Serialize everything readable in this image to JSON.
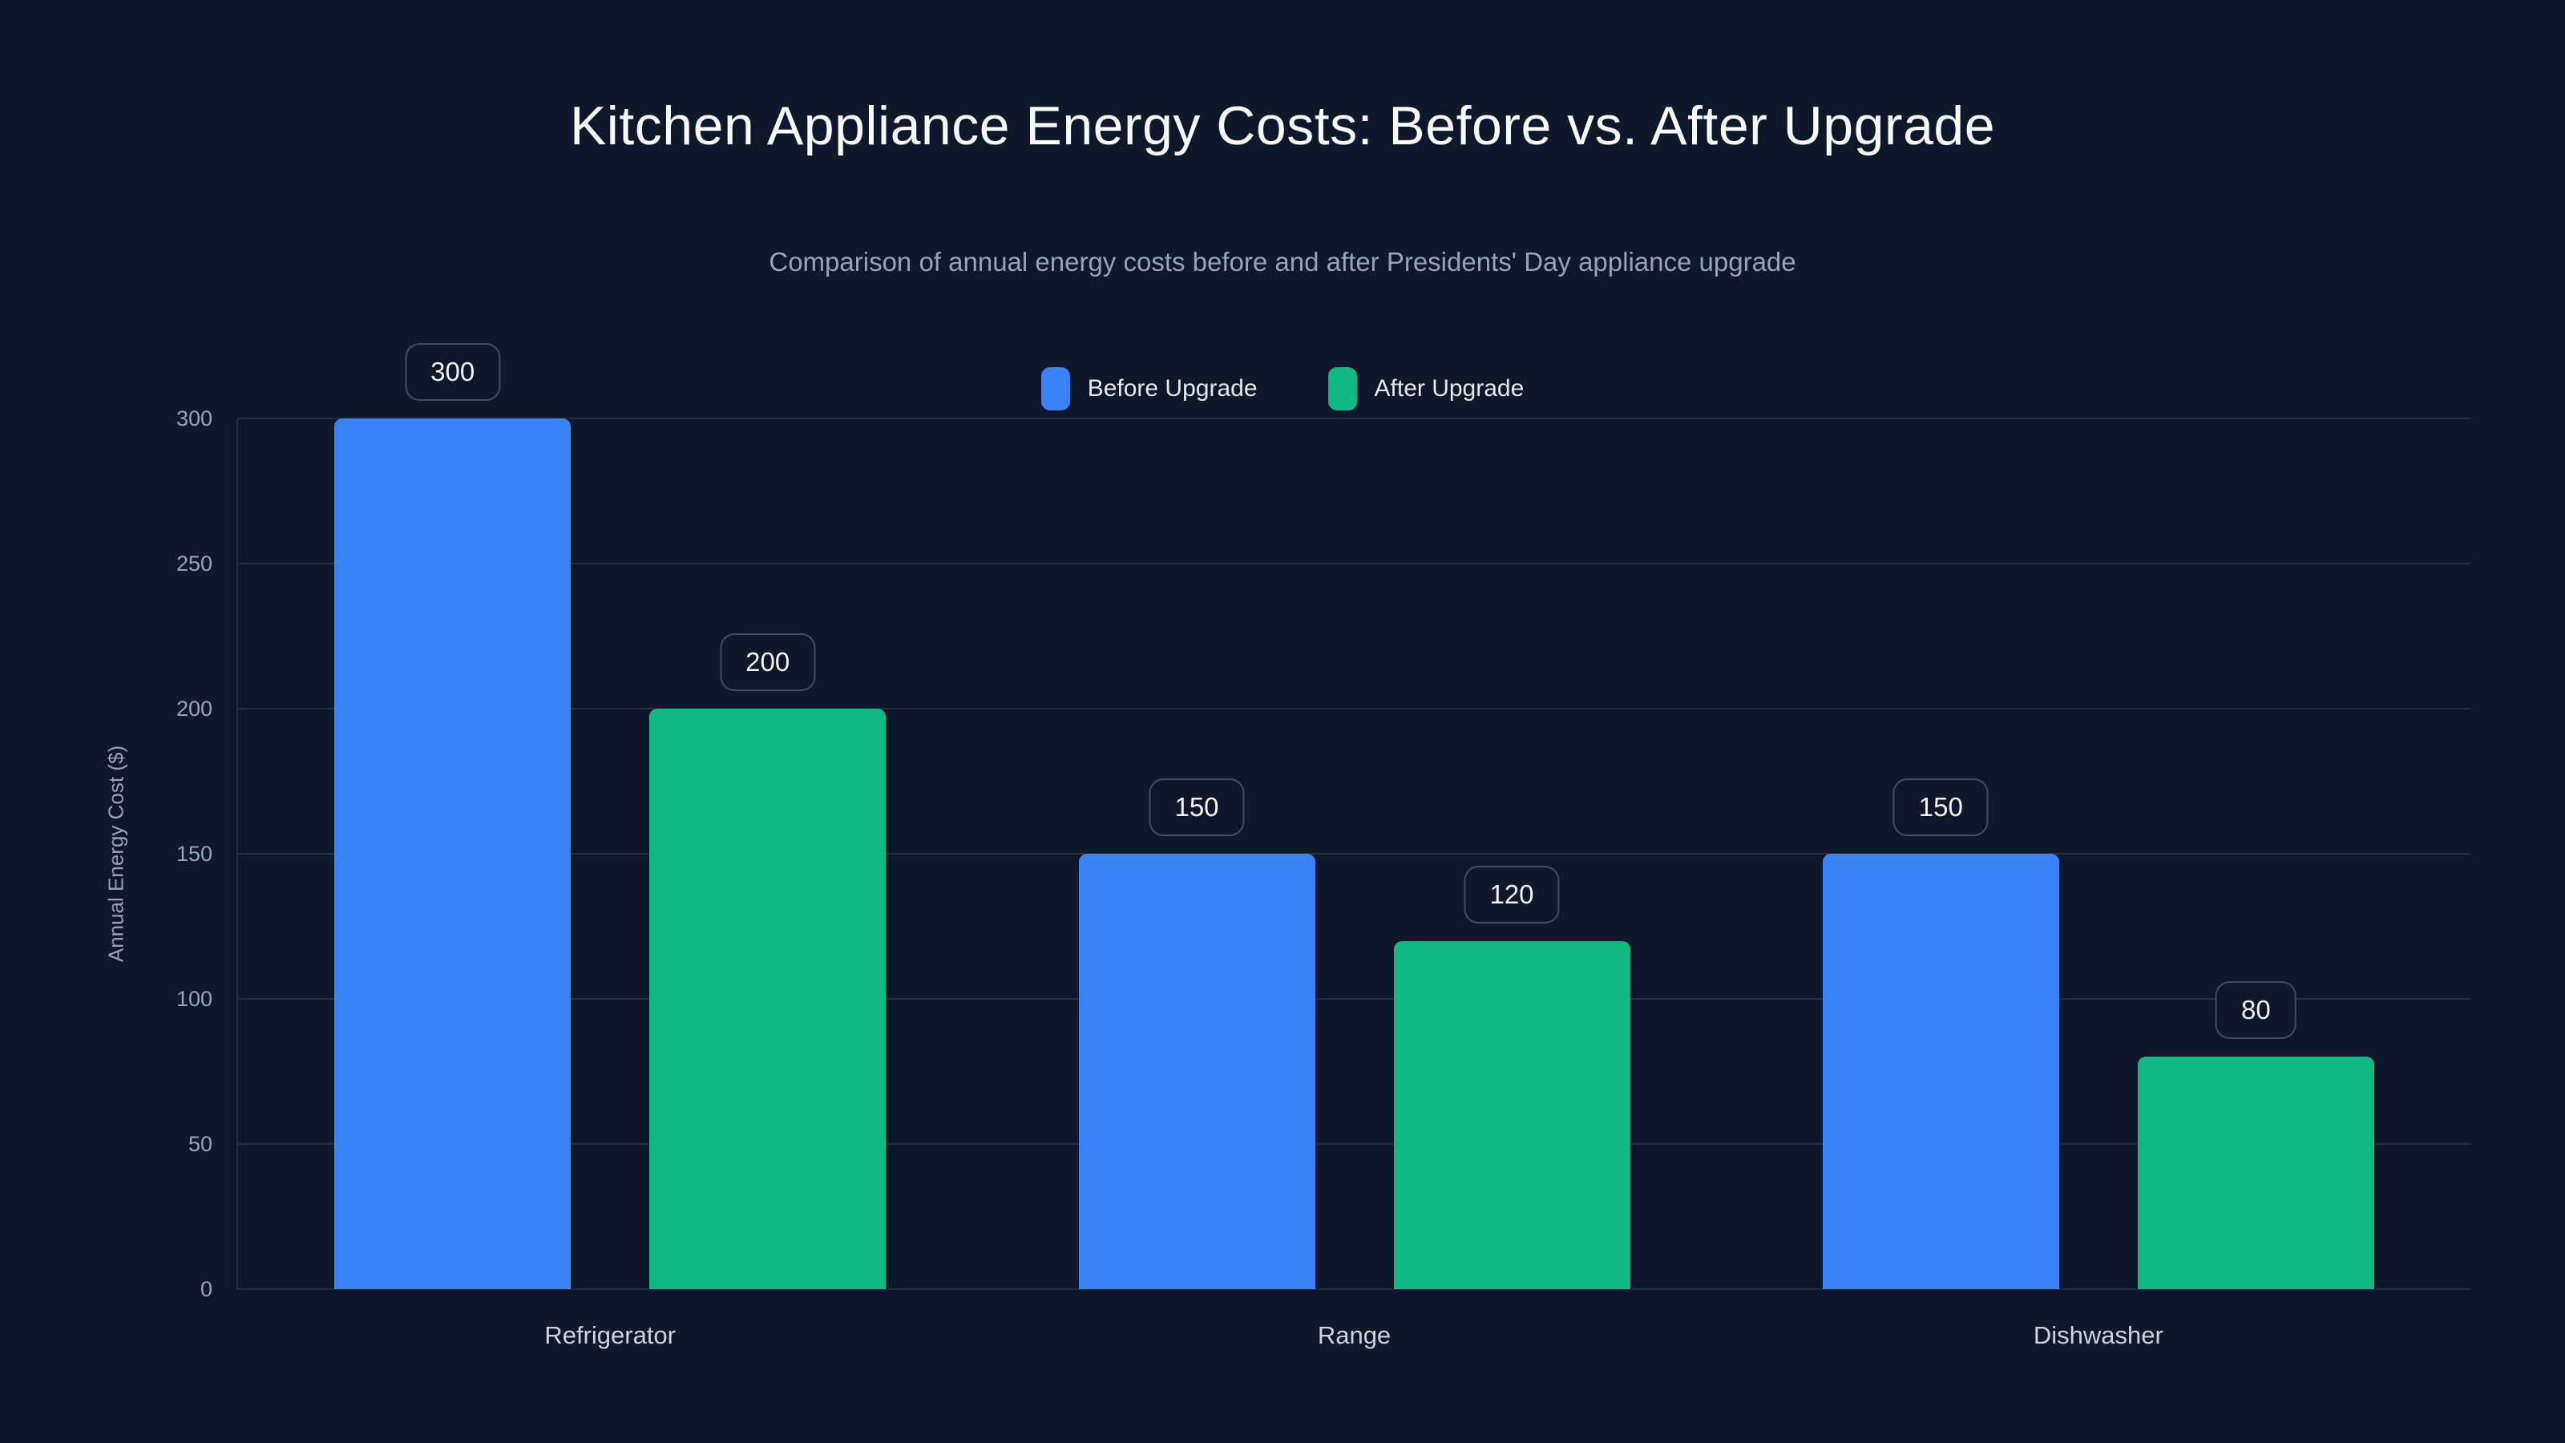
{
  "colors": {
    "background": "#0f172a",
    "grid": "rgba(148,163,184,0.16)",
    "title_text": "#f8fafc",
    "subtitle_text": "#94a3b8",
    "axis_text": "#94a3b8",
    "category_text": "#cbd5e1",
    "value_label_text": "#f1f5f9",
    "value_label_border": "#3e4c63",
    "before_upgrade": "#3b82f6",
    "after_upgrade": "#10b981"
  },
  "chart_data": {
    "type": "bar",
    "title": "Kitchen Appliance Energy Costs: Before vs. After Upgrade",
    "subtitle": "Comparison of annual energy costs before and after Presidents' Day appliance upgrade",
    "categories": [
      "Refrigerator",
      "Range",
      "Dishwasher"
    ],
    "series": [
      {
        "name": "Before Upgrade",
        "color": "#3b82f6",
        "values": [
          300,
          150,
          150
        ]
      },
      {
        "name": "After Upgrade",
        "color": "#10b981",
        "values": [
          200,
          120,
          80
        ]
      }
    ],
    "xlabel": "",
    "ylabel": "Annual Energy Cost ($)",
    "ylim": [
      0,
      300
    ],
    "yticks": [
      0,
      50,
      100,
      150,
      200,
      250,
      300
    ],
    "grid": true,
    "legend_position": "top-center",
    "value_labels": true
  }
}
